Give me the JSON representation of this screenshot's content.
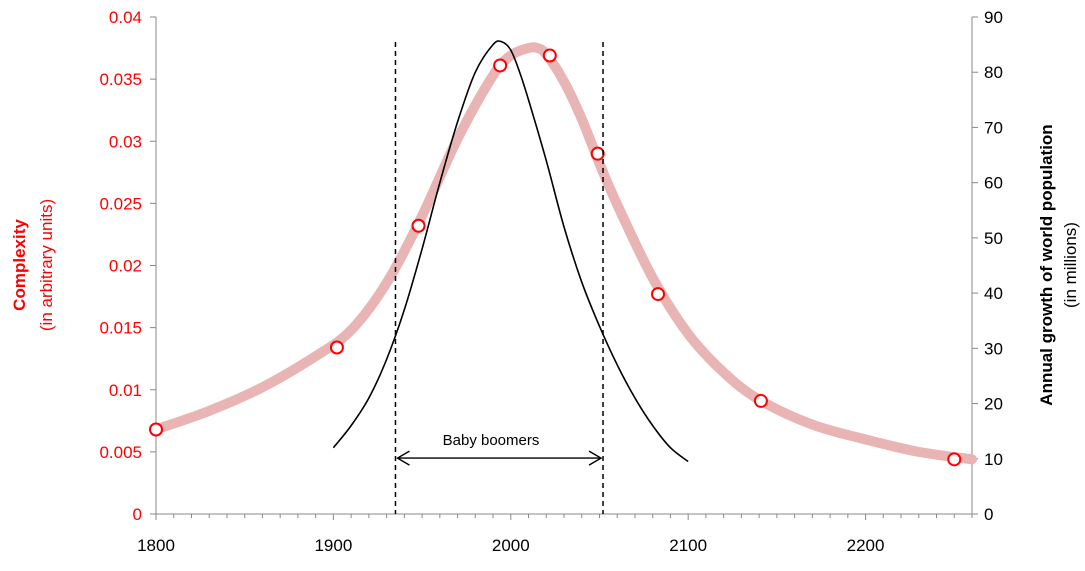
{
  "chart_data": {
    "type": "line",
    "xlim": [
      1800,
      2260
    ],
    "x_ticks": [
      "1800",
      "1900",
      "2000",
      "2100",
      "2200"
    ],
    "y_left": {
      "title": "Complexity",
      "subtitle": "(in arbitrary units)",
      "ylim": [
        0,
        0.04
      ],
      "ticks": [
        "0",
        "0.005",
        "0.01",
        "0.015",
        "0.02",
        "0.025",
        "0.03",
        "0.035",
        "0.04"
      ],
      "color": "#ff0000"
    },
    "y_right": {
      "title": "Annual growth of world population",
      "subtitle": "(in millions)",
      "ylim": [
        0,
        90
      ],
      "ticks": [
        "0",
        "10",
        "20",
        "30",
        "40",
        "50",
        "60",
        "70",
        "80",
        "90"
      ],
      "color": "#000000"
    },
    "series": [
      {
        "axis": "left",
        "style": "thick-curve",
        "color": "#e8b4b4",
        "x": [
          1800,
          1830,
          1860,
          1890,
          1910,
          1930,
          1950,
          1970,
          1990,
          2000,
          2010,
          2015,
          2020,
          2030,
          2040,
          2050,
          2060,
          2080,
          2100,
          2120,
          2140,
          2170,
          2200,
          2230,
          2260
        ],
        "y": [
          0.0068,
          0.0083,
          0.0102,
          0.0127,
          0.0148,
          0.0186,
          0.024,
          0.0302,
          0.0353,
          0.0369,
          0.0375,
          0.0375,
          0.037,
          0.0348,
          0.0318,
          0.0282,
          0.0249,
          0.019,
          0.0145,
          0.0114,
          0.0092,
          0.0072,
          0.006,
          0.005,
          0.0044
        ]
      },
      {
        "axis": "left",
        "style": "markers",
        "color": "#ff0000",
        "x": [
          1800,
          1902,
          1948,
          1994,
          2022,
          2049,
          2083,
          2141,
          2250
        ],
        "y": [
          0.0068,
          0.0134,
          0.0232,
          0.0361,
          0.0369,
          0.029,
          0.0177,
          0.0091,
          0.0044
        ]
      },
      {
        "axis": "right",
        "style": "line",
        "color": "#000000",
        "x": [
          1900,
          1910,
          1920,
          1930,
          1940,
          1950,
          1960,
          1970,
          1980,
          1990,
          1995,
          2000,
          2005,
          2010,
          2020,
          2030,
          2040,
          2050,
          2060,
          2070,
          2080,
          2090,
          2100
        ],
        "y": [
          12,
          16,
          21,
          28,
          37,
          48,
          60,
          71,
          80,
          85,
          85.5,
          84,
          80,
          75,
          64,
          52,
          42,
          34,
          27,
          21,
          16,
          12,
          9.5
        ]
      }
    ],
    "vlines": [
      1935,
      2052
    ],
    "annotations": {
      "baby_boomers": {
        "text": "Baby boomers",
        "x_from": 1935,
        "x_to": 2052,
        "y_left": 0.0045
      }
    }
  }
}
